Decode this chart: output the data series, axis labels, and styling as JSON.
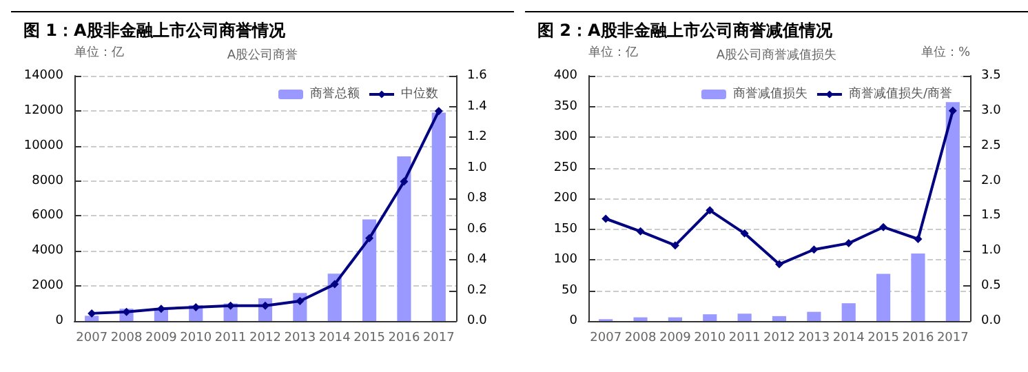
{
  "chart_data": [
    {
      "type": "bar",
      "title": "图 1：A股非金融上市公司商誉情况",
      "subtitle": "A股公司商誉",
      "ylabel": "单位：亿",
      "categories": [
        "2007",
        "2008",
        "2009",
        "2010",
        "2011",
        "2012",
        "2013",
        "2014",
        "2015",
        "2016",
        "2017"
      ],
      "series": [
        {
          "name": "商誉总额",
          "color": "#9999ff",
          "values": [
            300,
            700,
            750,
            900,
            1000,
            1300,
            1600,
            2700,
            5800,
            9400,
            11900
          ]
        },
        {
          "name": "中位数",
          "type": "line",
          "axis": "y2",
          "color": "#000080",
          "values": [
            0.05,
            0.06,
            0.08,
            0.09,
            0.1,
            0.1,
            0.13,
            0.24,
            0.54,
            0.91,
            1.37
          ]
        }
      ],
      "ylim": [
        0,
        14000
      ],
      "yticks": [
        0,
        2000,
        4000,
        6000,
        8000,
        10000,
        12000,
        14000
      ],
      "y2lim": [
        0,
        1.6
      ],
      "y2ticks": [
        {
          "value": 0,
          "label": "0.0"
        },
        {
          "value": 0.2,
          "label": "0.2"
        },
        {
          "value": 0.4,
          "label": "0.4"
        },
        {
          "value": 0.6,
          "label": "0.6"
        },
        {
          "value": 0.8,
          "label": "0.8"
        },
        {
          "value": 1,
          "label": "1.0"
        },
        {
          "value": 1.2,
          "label": "1.2"
        },
        {
          "value": 1.4,
          "label": "1.4"
        },
        {
          "value": 1.6,
          "label": "1.6"
        }
      ],
      "grid": "y",
      "legend": "top right",
      "marker": "diamond"
    },
    {
      "type": "bar",
      "title": "图 2：A股非金融上市公司商誉减值情况",
      "subtitle": "A股公司商誉减值损失",
      "ylabel": "单位：亿",
      "y2label": "单位：%",
      "categories": [
        "2007",
        "2008",
        "2009",
        "2010",
        "2011",
        "2012",
        "2013",
        "2014",
        "2015",
        "2016",
        "2017"
      ],
      "series": [
        {
          "name": "商誉减值损失",
          "color": "#9999ff",
          "values": [
            3,
            6,
            6,
            11,
            12,
            8,
            15,
            29,
            77,
            110,
            357
          ]
        },
        {
          "name": "商誉减值损失/商誉",
          "type": "line",
          "axis": "y2",
          "color": "#000080",
          "values": [
            1.46,
            1.28,
            1.08,
            1.58,
            1.25,
            0.81,
            1.02,
            1.11,
            1.34,
            1.17,
            3.0
          ]
        }
      ],
      "ylim": [
        0,
        400
      ],
      "yticks": [
        0,
        50,
        100,
        150,
        200,
        250,
        300,
        350,
        400
      ],
      "y2lim": [
        0,
        3.5
      ],
      "y2ticks": [
        {
          "value": 0,
          "label": "0.0"
        },
        {
          "value": 0.5,
          "label": "0.5"
        },
        {
          "value": 1,
          "label": "1.0"
        },
        {
          "value": 1.5,
          "label": "1.5"
        },
        {
          "value": 2,
          "label": "2.0"
        },
        {
          "value": 2.5,
          "label": "2.5"
        },
        {
          "value": 3,
          "label": "3.0"
        },
        {
          "value": 3.5,
          "label": "3.5"
        }
      ],
      "grid": "y",
      "legend": "top right",
      "marker": "diamond"
    }
  ]
}
